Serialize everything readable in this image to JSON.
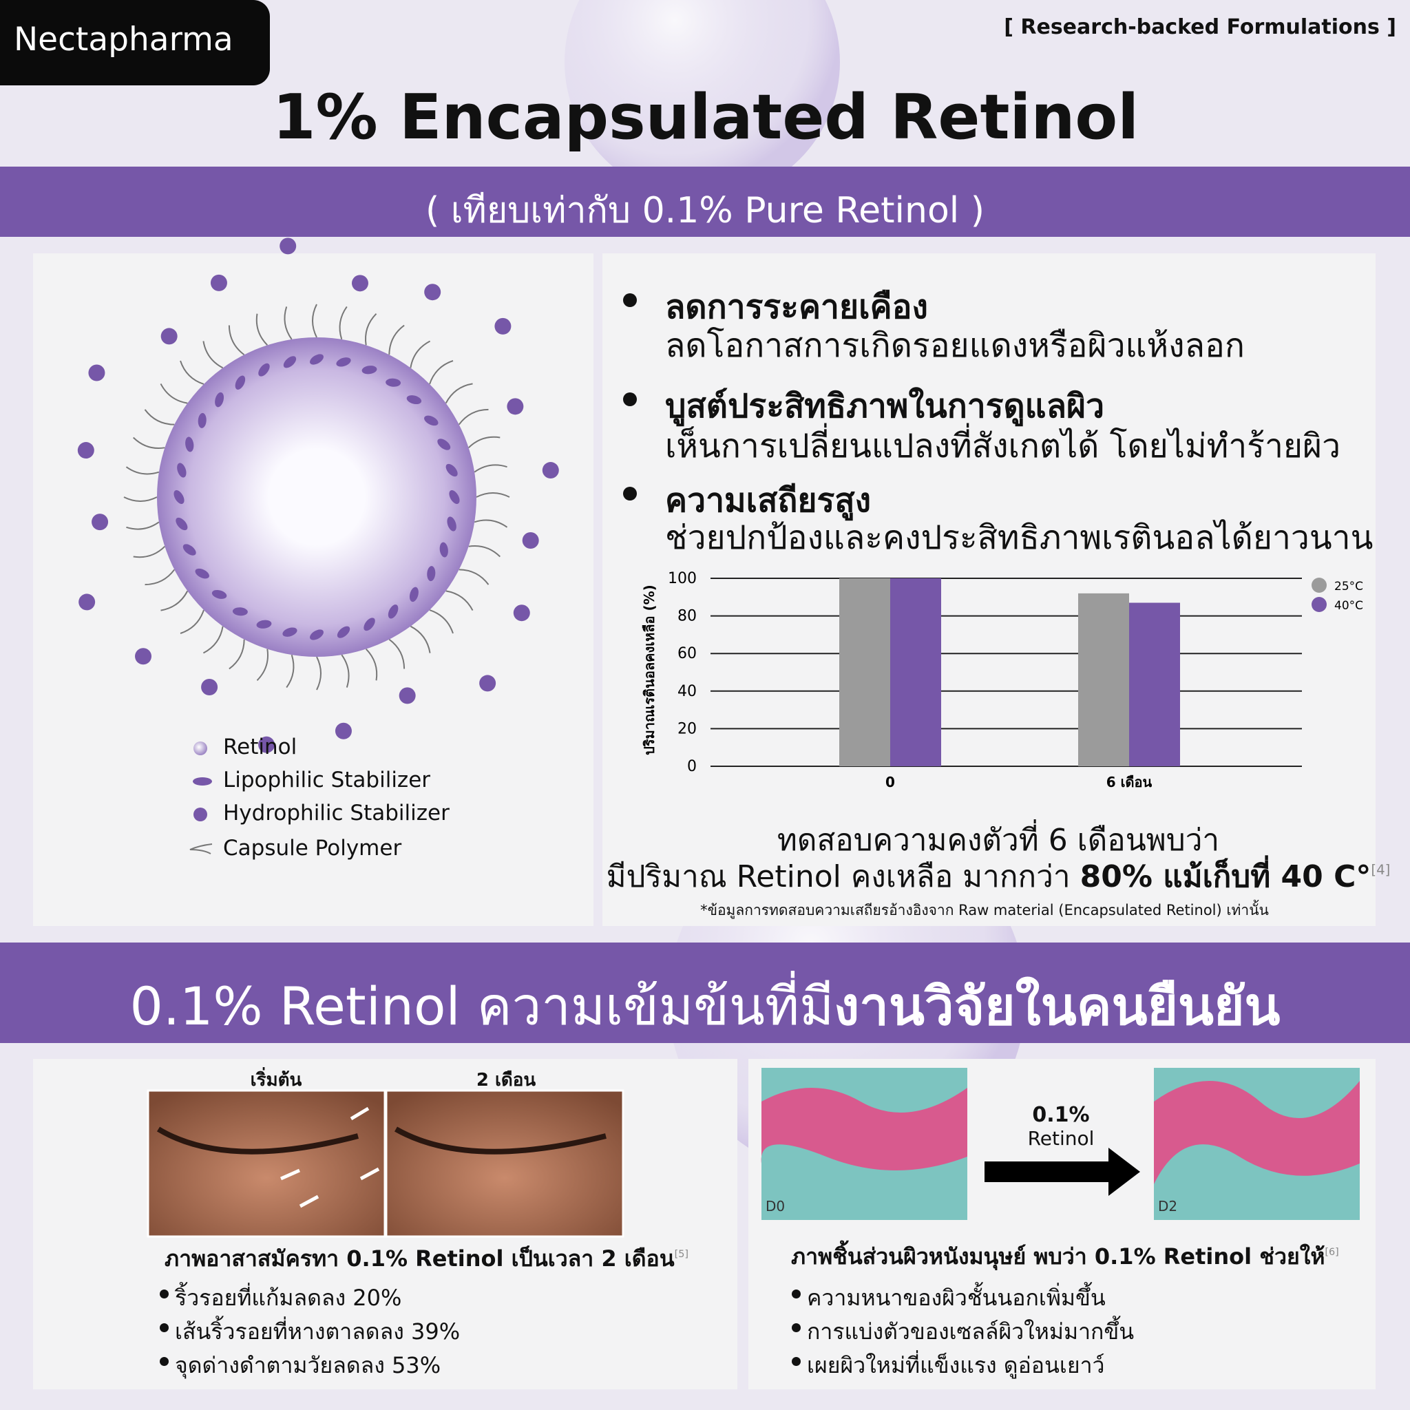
{
  "header": {
    "brand": "Nectapharma",
    "tagline": "[ Research-backed Formulations ]",
    "title": "1% Encapsulated Retinol",
    "subtitle": "( เทียบเท่ากับ 0.1% Pure Retinol )"
  },
  "diagram": {
    "legend": [
      "Retinol",
      "Lipophilic Stabilizer",
      "Hydrophilic Stabilizer",
      "Capsule Polymer"
    ]
  },
  "benefits": [
    {
      "heading": "ลดการระคายเคือง",
      "text": "ลดโอกาสการเกิดรอยแดงหรือผิวแห้งลอก"
    },
    {
      "heading": "บูสต์ประสิทธิภาพในการดูแลผิว",
      "text": "เห็นการเปลี่ยนแปลงที่สังเกตได้ โดยไม่ทำร้ายผิว"
    },
    {
      "heading": "ความเสถียรสูง",
      "text": "ช่วยปกป้องและคงประสิทธิภาพเรตินอลได้ยาวนาน"
    }
  ],
  "chart_data": {
    "type": "bar",
    "y_label": "ปริมาณเรตินอลคงเหลือ (%)",
    "categories": [
      "0",
      "6 เดือน"
    ],
    "series": [
      {
        "name": "25°C",
        "color": "#9b9b9b",
        "values": [
          100,
          92
        ]
      },
      {
        "name": "40°C",
        "color": "#7657a8",
        "values": [
          100,
          87
        ]
      }
    ],
    "ylim": [
      0,
      100
    ],
    "yticks": [
      0,
      20,
      40,
      60,
      80,
      100
    ],
    "grid": true,
    "legend": "upper right"
  },
  "stability": {
    "line1": "ทดสอบความคงตัวที่ 6 เดือนพบว่า",
    "line2": "มีปริมาณ Retinol คงเหลือ มากกว่า ",
    "line2_bold": "80% แม้เก็บที่ 40  C°",
    "ref": "[4]",
    "footnote": "*ข้อมูลการทดสอบความเสถียรอ้างอิงจาก Raw material (Encapsulated Retinol) เท่านั้น"
  },
  "banner": {
    "text": "0.1% Retinol ความเข้มข้นที่มี",
    "bold": "งานวิจัยในคนยืนยัน"
  },
  "clinical": {
    "before": "เริ่มต้น",
    "after": "2 เดือน",
    "caption": "ภาพอาสาสมัครทา 0.1% Retinol เป็นเวลา 2 เดือน",
    "ref": "[5]",
    "bullets": [
      "ริ้วรอยที่แก้มลดลง 20%",
      "เส้นริ้วรอยที่หางตาลดลง 39%",
      "จุดด่างดำตามวัยลดลง 53%"
    ]
  },
  "histology": {
    "dose": "0.1%",
    "agent": "Retinol",
    "before": "D0",
    "after": "D2",
    "caption": "ภาพชิ้นส่วนผิวหนังมนุษย์ พบว่า 0.1% Retinol ช่วยให้",
    "ref": "[6]",
    "bullets": [
      "ความหนาของผิวชั้นนอกเพิ่มขึ้น",
      "การแบ่งตัวของเซลล์ผิวใหม่มากขึ้น",
      "เผยผิวใหม่ที่แข็งแรง ดูอ่อนเยาว์"
    ]
  }
}
